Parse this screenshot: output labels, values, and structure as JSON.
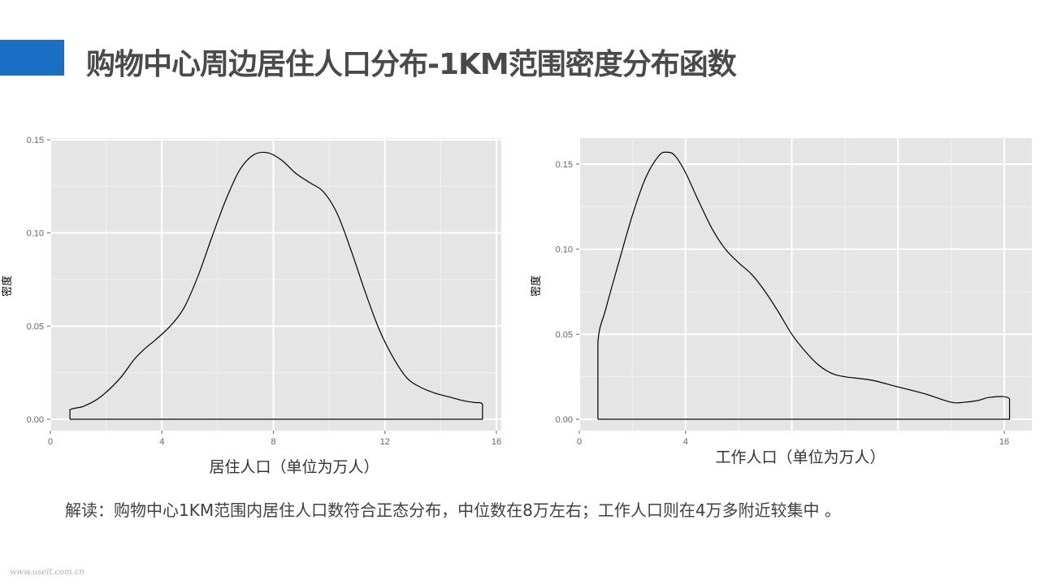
{
  "slide": {
    "title": "购物中心周边居住人口分布-1KM范围密度分布函数",
    "note": "解读：购物中心1KM范围内居住人口数符合正态分布，中位数在8万左右；工作人口则在4万多附近较集中 。",
    "watermark": "www.useit.com.cn",
    "accent_color": "#1a6fc4"
  },
  "chart_data": [
    {
      "type": "area",
      "title": "",
      "xlabel": "居住人口（单位为万人）",
      "ylabel": "密度",
      "xlim": [
        0,
        16
      ],
      "ylim": [
        0,
        0.15
      ],
      "xticks": [
        0,
        4,
        8,
        12,
        16
      ],
      "xtick_labels": [
        "0",
        "4",
        "8",
        "12",
        "16"
      ],
      "yticks": [
        0,
        0.05,
        0.1,
        0.15
      ],
      "ytick_labels": [
        "0.00",
        "0.05",
        "0.10",
        "0.15"
      ],
      "grid": true,
      "fill": "none",
      "series": [
        {
          "x": [
            0.7,
            0.7,
            1.2,
            1.8,
            2.5,
            3.0,
            3.4,
            3.8,
            4.3,
            4.8,
            5.3,
            5.8,
            6.3,
            6.8,
            7.3,
            7.8,
            8.3,
            8.8,
            9.3,
            9.8,
            10.3,
            10.8,
            11.3,
            11.8,
            12.3,
            12.8,
            13.3,
            13.8,
            14.3,
            14.8,
            15.2,
            15.5,
            15.5,
            0.7
          ],
          "y": [
            0.0,
            0.005,
            0.007,
            0.012,
            0.022,
            0.032,
            0.038,
            0.043,
            0.05,
            0.06,
            0.077,
            0.098,
            0.118,
            0.134,
            0.142,
            0.143,
            0.139,
            0.132,
            0.127,
            0.122,
            0.11,
            0.09,
            0.068,
            0.048,
            0.033,
            0.022,
            0.017,
            0.014,
            0.012,
            0.01,
            0.009,
            0.008,
            0.0,
            0.0
          ]
        }
      ]
    },
    {
      "type": "area",
      "title": "",
      "xlabel": "工作人口（单位为万人）",
      "ylabel": "密度",
      "xlim": [
        0,
        16
      ],
      "ylim": [
        0,
        0.15
      ],
      "xticks": [
        0,
        4,
        8,
        12,
        16
      ],
      "xtick_labels": [
        "0",
        "4",
        "",
        "",
        "16"
      ],
      "yticks": [
        0,
        0.05,
        0.1,
        0.15
      ],
      "ytick_labels": [
        "0.00",
        "0.05",
        "0.10",
        "0.15"
      ],
      "grid": true,
      "fill": "none",
      "series": [
        {
          "x": [
            0.7,
            0.7,
            1.0,
            1.5,
            2.0,
            2.5,
            3.0,
            3.3,
            3.6,
            4.0,
            4.5,
            5.0,
            5.5,
            6.0,
            6.5,
            7.0,
            7.5,
            8.0,
            8.5,
            9.0,
            9.5,
            10.0,
            11.0,
            12.0,
            13.0,
            14.0,
            14.5,
            15.0,
            15.5,
            16.2,
            16.2,
            0.7
          ],
          "y": [
            0.0,
            0.045,
            0.065,
            0.093,
            0.12,
            0.142,
            0.155,
            0.157,
            0.155,
            0.145,
            0.128,
            0.112,
            0.1,
            0.092,
            0.085,
            0.075,
            0.063,
            0.05,
            0.04,
            0.032,
            0.027,
            0.025,
            0.023,
            0.019,
            0.015,
            0.01,
            0.01,
            0.011,
            0.013,
            0.012,
            0.0,
            0.0
          ]
        }
      ]
    }
  ]
}
